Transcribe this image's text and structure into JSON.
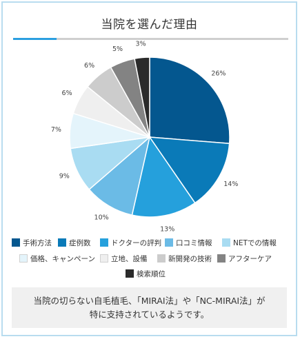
{
  "header": {
    "title": "当院を選んだ理由"
  },
  "chart_data": {
    "type": "pie",
    "title": "当院を選んだ理由",
    "categories": [
      "手術方法",
      "症例数",
      "ドクターの評判",
      "口コミ情報",
      "NETでの情報",
      "価格、キャンペーン",
      "立地、設備",
      "新開発の技術",
      "アフターケア",
      "検索順位"
    ],
    "values": [
      26,
      14,
      13,
      10,
      9,
      7,
      6,
      6,
      5,
      3
    ],
    "value_labels": [
      "26%",
      "14%",
      "13%",
      "10%",
      "9%",
      "7%",
      "6%",
      "6%",
      "5%",
      "3%"
    ],
    "colors": [
      "#04578f",
      "#0a7ab8",
      "#25a0dc",
      "#6bbbe6",
      "#a9dcf2",
      "#e4f4fb",
      "#efefef",
      "#cccccc",
      "#838383",
      "#2b2b2b"
    ],
    "start": "12 o'clock",
    "direction": "clockwise",
    "legend_position": "bottom"
  },
  "note": {
    "line1": "当院の切らない自毛植毛、「MIRAI法」や「NC-MIRAI法」が",
    "line2": "特に支持されているようです。"
  }
}
